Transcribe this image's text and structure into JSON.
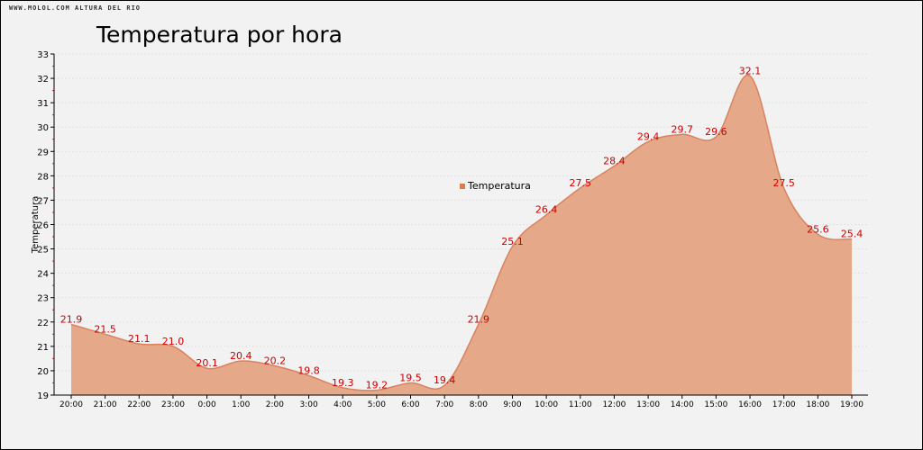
{
  "watermark": "WWW.MOLOL.COM ALTURA DEL RIO",
  "chart_data": {
    "type": "area",
    "title": "Temperatura por hora",
    "xlabel": "",
    "ylabel": "Temperatura",
    "ylim": [
      19,
      33
    ],
    "yticks": [
      19,
      20,
      21,
      22,
      23,
      24,
      25,
      26,
      27,
      28,
      29,
      30,
      31,
      32,
      33
    ],
    "categories": [
      "20:00",
      "21:00",
      "22:00",
      "23:00",
      "0:00",
      "1:00",
      "2:00",
      "3:00",
      "4:00",
      "5:00",
      "6:00",
      "7:00",
      "8:00",
      "9:00",
      "10:00",
      "11:00",
      "12:00",
      "13:00",
      "14:00",
      "15:00",
      "16:00",
      "17:00",
      "18:00",
      "19:00"
    ],
    "series": [
      {
        "name": "Temperatura",
        "values": [
          21.9,
          21.5,
          21.1,
          21.0,
          20.1,
          20.4,
          20.2,
          19.8,
          19.3,
          19.2,
          19.5,
          19.4,
          21.9,
          25.1,
          26.4,
          27.5,
          28.4,
          29.4,
          29.7,
          29.6,
          32.1,
          27.5,
          25.6,
          25.4
        ],
        "color": "#e5a98a",
        "line_color": "#d9825f",
        "label_color": "#cc0000"
      }
    ],
    "legend_position": "center",
    "grid": true
  }
}
